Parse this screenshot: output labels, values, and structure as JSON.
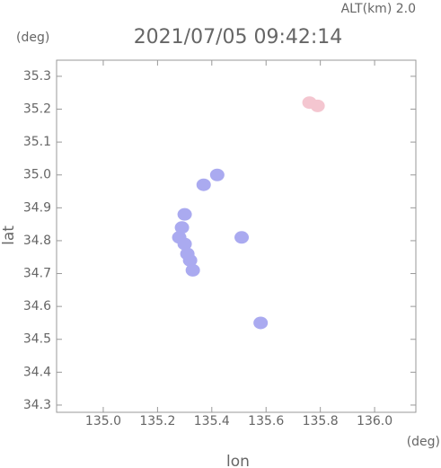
{
  "chart_data": {
    "type": "scatter",
    "title": "2021/07/05 09:42:14",
    "annotation": "ALT(km)  2.0",
    "y_unit": "(deg)",
    "x_unit": "(deg)",
    "xlabel": "lon",
    "ylabel": "lat",
    "xlim": [
      134.828,
      136.152
    ],
    "ylim": [
      34.278,
      35.349
    ],
    "xticks": [
      {
        "value": 135,
        "label": "135.0"
      },
      135.2,
      135.4,
      135.6,
      135.8,
      {
        "value": 136,
        "label": "136.0"
      }
    ],
    "yticks": [
      34.3,
      34.4,
      34.5,
      34.6,
      34.7,
      34.8,
      34.9,
      {
        "value": 35,
        "label": "35.0"
      },
      35.1,
      35.2,
      35.3
    ],
    "series": [
      {
        "color": "#aaaaf0",
        "x": [
          135.3,
          135.29,
          135.28,
          135.3,
          135.31,
          135.32,
          135.33,
          135.37,
          135.42,
          135.51,
          135.58
        ],
        "y": [
          34.88,
          34.84,
          34.81,
          34.79,
          34.76,
          34.74,
          34.71,
          34.97,
          35.0,
          34.81,
          34.55
        ]
      },
      {
        "color": "#f4c6d0",
        "x": [
          135.76,
          135.79
        ],
        "y": [
          35.22,
          35.21
        ]
      }
    ]
  }
}
